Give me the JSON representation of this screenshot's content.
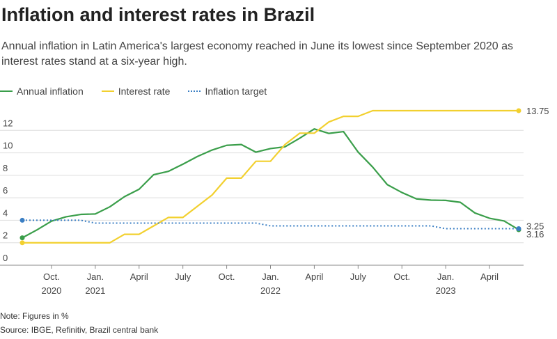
{
  "chart_data": {
    "type": "line",
    "title": "Inflation and interest rates in Brazil",
    "subtitle": "Annual inflation in Latin America's largest economy reached in June its lowest since September 2020 as interest rates stand at a six-year high.",
    "note": "Note: Figures in %",
    "source": "Source: IBGE, Refinitiv, Brazil central bank",
    "x": [
      "2020-08",
      "2020-09",
      "2020-10",
      "2020-11",
      "2020-12",
      "2021-01",
      "2021-02",
      "2021-03",
      "2021-04",
      "2021-05",
      "2021-06",
      "2021-07",
      "2021-08",
      "2021-09",
      "2021-10",
      "2021-11",
      "2021-12",
      "2022-01",
      "2022-02",
      "2022-03",
      "2022-04",
      "2022-05",
      "2022-06",
      "2022-07",
      "2022-08",
      "2022-09",
      "2022-10",
      "2022-11",
      "2022-12",
      "2023-01",
      "2023-02",
      "2023-03",
      "2023-04",
      "2023-05",
      "2023-06"
    ],
    "xticks": [
      {
        "value": "2020-10",
        "label": [
          "Oct.",
          "2020"
        ]
      },
      {
        "value": "2021-01",
        "label": [
          "Jan.",
          "2021"
        ]
      },
      {
        "value": "2021-04",
        "label": [
          "April"
        ]
      },
      {
        "value": "2021-07",
        "label": [
          "July"
        ]
      },
      {
        "value": "2021-10",
        "label": [
          "Oct."
        ]
      },
      {
        "value": "2022-01",
        "label": [
          "Jan.",
          "2022"
        ]
      },
      {
        "value": "2022-04",
        "label": [
          "April"
        ]
      },
      {
        "value": "2022-07",
        "label": [
          "July"
        ]
      },
      {
        "value": "2022-10",
        "label": [
          "Oct."
        ]
      },
      {
        "value": "2023-01",
        "label": [
          "Jan.",
          "2023"
        ]
      },
      {
        "value": "2023-04",
        "label": [
          "April"
        ]
      }
    ],
    "ylim": [
      0,
      14
    ],
    "yticks": [
      0,
      2,
      4,
      6,
      8,
      10,
      12
    ],
    "grid": true,
    "series": [
      {
        "name": "Annual inflation",
        "color": "#3a9e4a",
        "style": "solid",
        "values": [
          2.44,
          3.14,
          3.92,
          4.31,
          4.52,
          4.56,
          5.2,
          6.1,
          6.76,
          8.06,
          8.35,
          8.99,
          9.68,
          10.25,
          10.67,
          10.74,
          10.06,
          10.38,
          10.54,
          11.3,
          12.13,
          11.73,
          11.89,
          10.07,
          8.73,
          7.17,
          6.47,
          5.9,
          5.79,
          5.77,
          5.6,
          4.65,
          4.18,
          3.94,
          3.16
        ],
        "value_labels": [
          null,
          null,
          null,
          null,
          null,
          null,
          null,
          null,
          null,
          null,
          null,
          null,
          null,
          null,
          null,
          null,
          null,
          null,
          null,
          null,
          null,
          null,
          null,
          null,
          null,
          null,
          null,
          null,
          null,
          null,
          null,
          null,
          null,
          null,
          "3.16"
        ]
      },
      {
        "name": "Interest rate",
        "color": "#f2d02f",
        "style": "solid",
        "values": [
          2,
          2,
          2,
          2,
          2,
          2,
          2,
          2.75,
          2.75,
          3.5,
          4.25,
          4.25,
          5.25,
          6.25,
          7.75,
          7.75,
          9.25,
          9.25,
          10.75,
          11.75,
          11.75,
          12.75,
          13.25,
          13.25,
          13.75,
          13.75,
          13.75,
          13.75,
          13.75,
          13.75,
          13.75,
          13.75,
          13.75,
          13.75,
          13.75
        ],
        "value_labels": [
          null,
          null,
          null,
          null,
          null,
          null,
          null,
          null,
          null,
          null,
          null,
          null,
          null,
          null,
          null,
          null,
          null,
          null,
          null,
          null,
          null,
          null,
          null,
          null,
          null,
          null,
          null,
          null,
          null,
          null,
          null,
          null,
          null,
          null,
          "13.75"
        ]
      },
      {
        "name": "Inflation target",
        "color": "#3b7fc4",
        "style": "dotted",
        "values": [
          4,
          4,
          4,
          4,
          4,
          3.75,
          3.75,
          3.75,
          3.75,
          3.75,
          3.75,
          3.75,
          3.75,
          3.75,
          3.75,
          3.75,
          3.75,
          3.5,
          3.5,
          3.5,
          3.5,
          3.5,
          3.5,
          3.5,
          3.5,
          3.5,
          3.5,
          3.5,
          3.5,
          3.25,
          3.25,
          3.25,
          3.25,
          3.25,
          3.25
        ],
        "value_labels": [
          null,
          null,
          null,
          null,
          null,
          null,
          null,
          null,
          null,
          null,
          null,
          null,
          null,
          null,
          null,
          null,
          null,
          null,
          null,
          null,
          null,
          null,
          null,
          null,
          null,
          null,
          null,
          null,
          null,
          null,
          null,
          null,
          null,
          null,
          "3.25"
        ]
      }
    ]
  }
}
